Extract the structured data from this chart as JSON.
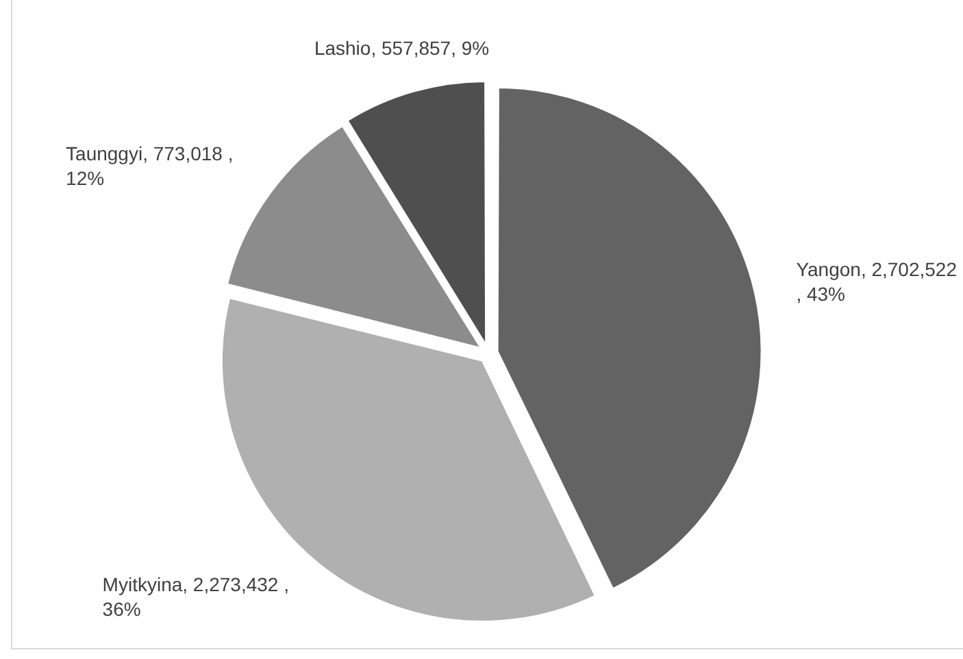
{
  "chart_data": {
    "type": "pie",
    "categories": [
      "Yangon",
      "Myitkyina",
      "Taunggyi",
      "Lashio"
    ],
    "values": [
      2702522,
      2273432,
      773018,
      557857
    ],
    "value_labels": [
      "2,702,522 , 43%",
      "2,273,432 , 36%",
      "773,018 , 12%",
      "557,857, 9%"
    ],
    "colors": [
      "#636363",
      "#b0b0b0",
      "#8c8c8c",
      "#4f4f4f"
    ],
    "legend": false
  }
}
